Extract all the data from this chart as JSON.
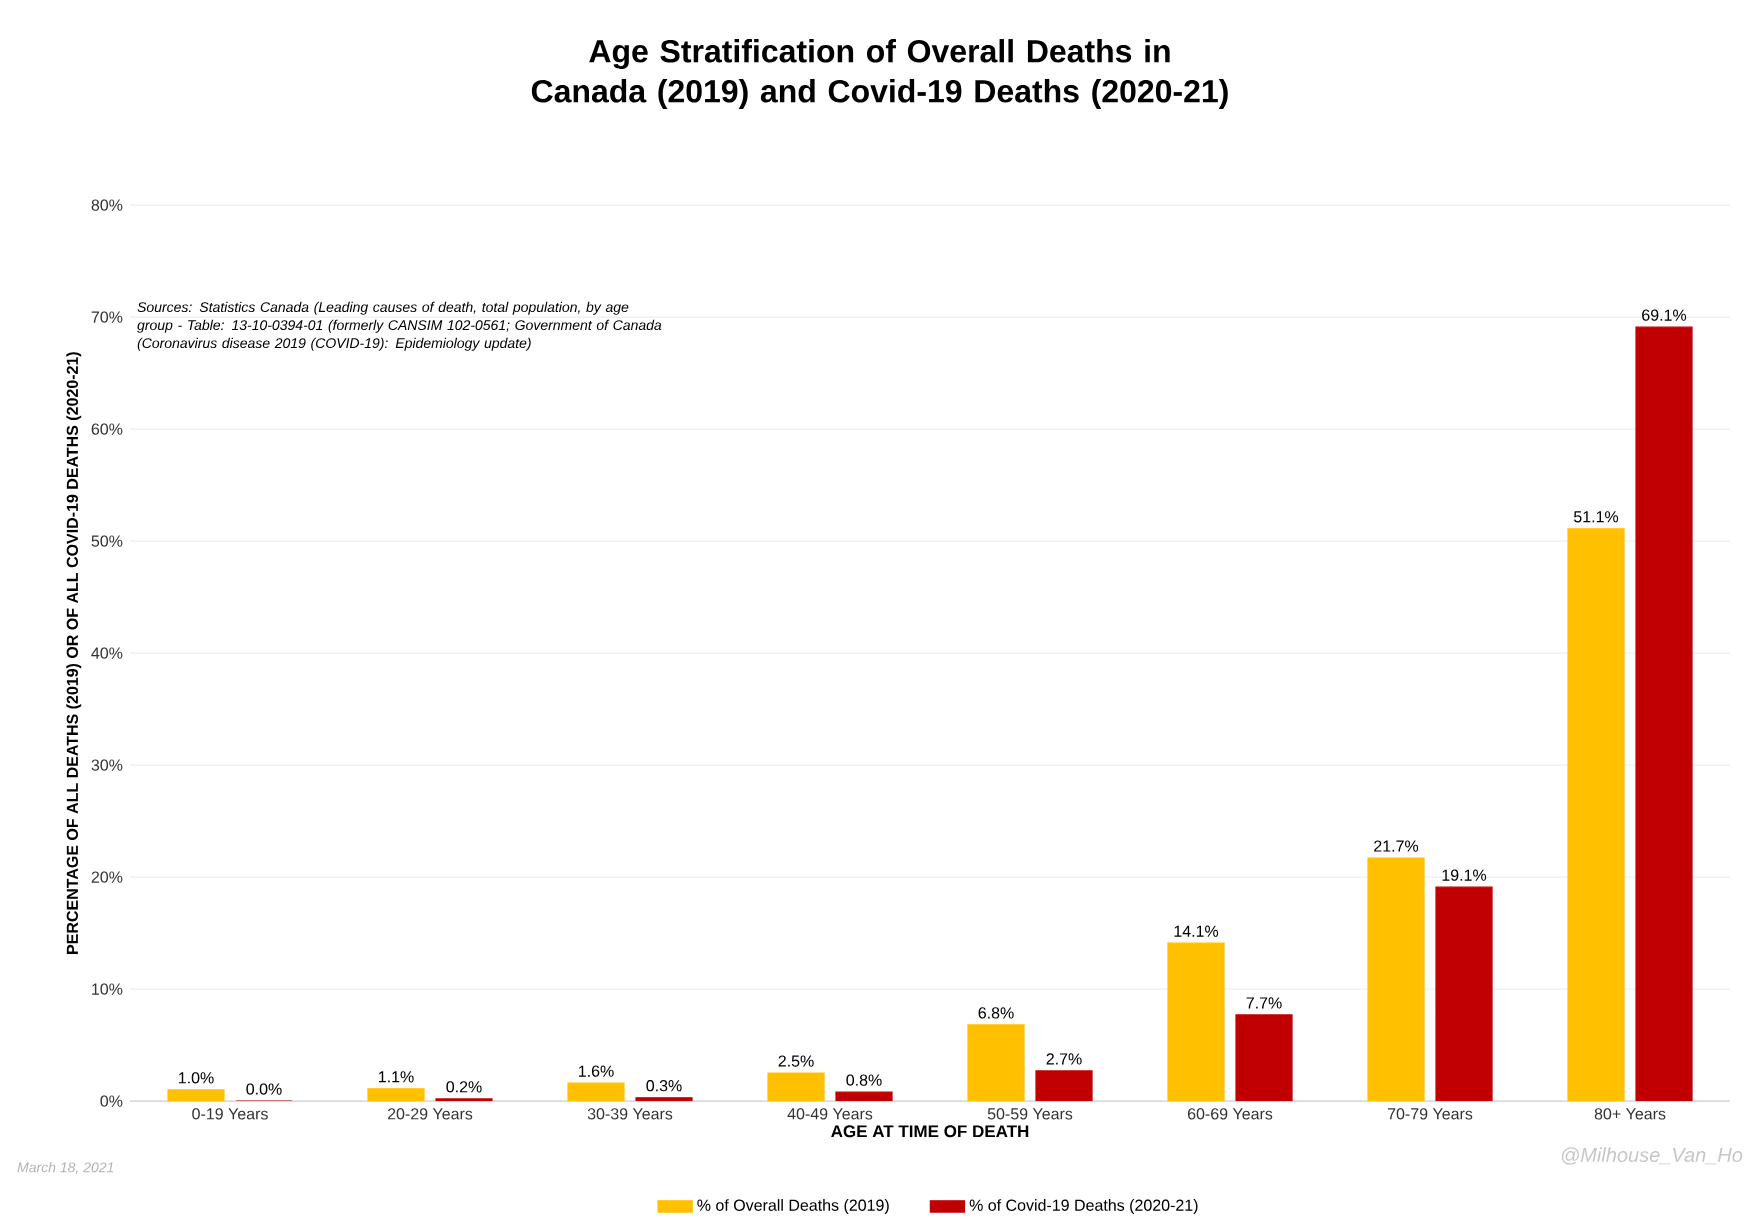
{
  "chart_data": {
    "type": "bar",
    "title": "Age Stratification of Overall Deaths in Canada (2019) and Covid-19 Deaths (2020-21)",
    "xlabel": "AGE AT TIME OF DEATH",
    "ylabel": "PERCENTAGE OF ALL DEATHS (2019) OR OF ALL COVID-19 DEATHS (2020-21)",
    "categories": [
      "0-19 Years",
      "20-29 Years",
      "30-39 Years",
      "40-49 Years",
      "50-59 Years",
      "60-69 Years",
      "70-79 Years",
      "80+ Years"
    ],
    "series": [
      {
        "name": "% of Overall Deaths (2019)",
        "color": "#ffc000",
        "values": [
          1.0,
          1.1,
          1.6,
          2.5,
          6.8,
          14.1,
          21.7,
          51.1
        ],
        "value_labels": [
          "1.0%",
          "1.1%",
          "1.6%",
          "2.5%",
          "6.8%",
          "14.1%",
          "21.7%",
          "51.1%"
        ]
      },
      {
        "name": "% of Covid-19 Deaths (2020-21)",
        "color": "#c00000",
        "values": [
          0.0,
          0.2,
          0.3,
          0.8,
          2.7,
          7.7,
          19.1,
          69.1
        ],
        "value_labels": [
          "0.0%",
          "0.2%",
          "0.3%",
          "0.8%",
          "2.7%",
          "7.7%",
          "19.1%",
          "69.1%"
        ]
      }
    ],
    "ylim": [
      0,
      80
    ],
    "yticks": [
      {
        "value": 0,
        "label": "0%"
      },
      {
        "value": 10,
        "label": "10%"
      },
      {
        "value": 20,
        "label": "20%"
      },
      {
        "value": 30,
        "label": "30%"
      },
      {
        "value": 40,
        "label": "40%"
      },
      {
        "value": 50,
        "label": "50%"
      },
      {
        "value": 60,
        "label": "60%"
      },
      {
        "value": 70,
        "label": "70%"
      },
      {
        "value": 80,
        "label": "80%"
      }
    ],
    "grid": "y",
    "legend": "bottom",
    "annotations": [
      "Sources: Statistics Canada (Leading causes of death, total population, by age group - Table: 13-10-0394-01 (formerly CANSIM 102-0561; Government of Canada (Coronavirus disease 2019 (COVID-19): Epidemiology update)",
      "March 18, 2021",
      "@Milhouse_Van_Ho"
    ]
  }
}
